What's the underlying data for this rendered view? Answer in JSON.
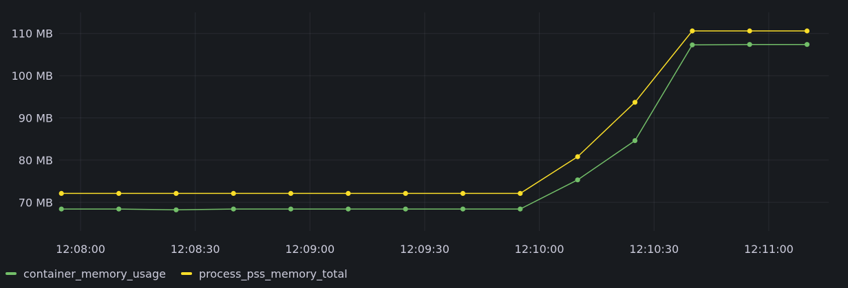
{
  "chart_data": {
    "type": "line",
    "x": [
      "12:07:55",
      "12:08:10",
      "12:08:25",
      "12:08:40",
      "12:08:55",
      "12:09:10",
      "12:09:25",
      "12:09:40",
      "12:09:55",
      "12:10:10",
      "12:10:25",
      "12:10:40",
      "12:10:55",
      "12:11:10"
    ],
    "x_ticks": [
      "12:08:00",
      "12:08:30",
      "12:09:00",
      "12:09:30",
      "12:10:00",
      "12:10:30",
      "12:11:00"
    ],
    "y_ticks": [
      "70 MB",
      "80 MB",
      "90 MB",
      "100 MB",
      "110 MB"
    ],
    "y_unit": "MB",
    "ylim": [
      63.2,
      115
    ],
    "grid": true,
    "legend_position": "bottom-left",
    "series": [
      {
        "name": "container_memory_usage",
        "color": "#73bf69",
        "values": [
          68.4,
          68.4,
          68.2,
          68.4,
          68.4,
          68.4,
          68.4,
          68.4,
          68.4,
          75.3,
          84.6,
          107.3,
          107.4,
          107.4
        ]
      },
      {
        "name": "process_pss_memory_total",
        "color": "#fade2a",
        "values": [
          72.1,
          72.1,
          72.1,
          72.1,
          72.1,
          72.1,
          72.1,
          72.1,
          72.1,
          80.8,
          93.7,
          110.6,
          110.6,
          110.6
        ]
      }
    ]
  }
}
